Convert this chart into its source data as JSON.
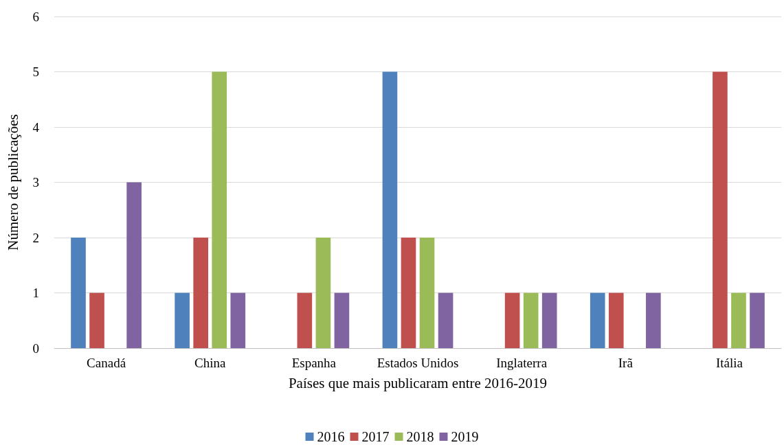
{
  "chart_data": {
    "type": "bar",
    "xlabel": "Países que mais publicaram entre 2016-2019",
    "ylabel": "Número de publicações",
    "categories": [
      "Canadá",
      "China",
      "Espanha",
      "Estados Unidos",
      "Inglaterra",
      "Irã",
      "Itália"
    ],
    "series": [
      {
        "name": "2016",
        "color": "#4f81bd",
        "values": [
          2,
          1,
          0,
          5,
          0,
          1,
          0
        ]
      },
      {
        "name": "2017",
        "color": "#c0504d",
        "values": [
          1,
          2,
          1,
          2,
          1,
          1,
          5
        ]
      },
      {
        "name": "2018",
        "color": "#9bbb59",
        "values": [
          0,
          5,
          2,
          2,
          1,
          0,
          1
        ]
      },
      {
        "name": "2019",
        "color": "#8064a2",
        "values": [
          3,
          1,
          1,
          1,
          1,
          1,
          1
        ]
      }
    ],
    "ylim": [
      0,
      6
    ],
    "yticks": [
      0,
      1,
      2,
      3,
      4,
      5,
      6
    ],
    "grid": "y",
    "legend": "bottom"
  }
}
